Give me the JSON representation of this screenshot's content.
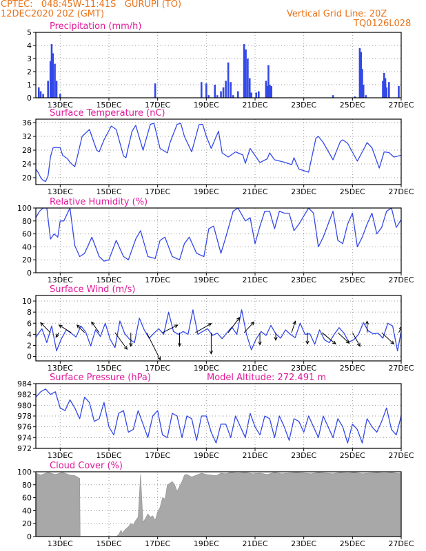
{
  "header": {
    "line1_left": "CPTEC:   048:45W-11:41S   GURUPI (TO)",
    "line2_left": "12DEC2020 20Z (GMT)",
    "line2_right": "Vertical Grid Line: 20Z",
    "line3_right": "TQ0126L028"
  },
  "colors": {
    "header": "#e8731a",
    "title": "#e0189a",
    "series": "#3348e8",
    "cloud": "#a8a8a8",
    "arrow": "#000000"
  },
  "x_axis": {
    "domain": [
      0,
      15
    ],
    "tick_positions": [
      1,
      3,
      5,
      7,
      9,
      11,
      13,
      15
    ],
    "tick_labels": [
      "13DEC",
      "15DEC",
      "17DEC",
      "19DEC",
      "21DEC",
      "23DEC",
      "25DEC",
      "27DEC"
    ],
    "grid_positions": [
      1,
      3,
      5,
      7,
      9,
      11,
      13
    ]
  },
  "chart_data": [
    {
      "id": "precipitation",
      "type": "bar",
      "title": "Precipitation (mm/h)",
      "ylim": [
        0,
        5
      ],
      "yticks": [
        0,
        1,
        2,
        3,
        4,
        5
      ],
      "x": [
        0.12,
        0.2,
        0.3,
        0.5,
        0.6,
        0.65,
        0.7,
        0.78,
        0.85,
        1.0,
        4.9,
        6.8,
        7.0,
        7.1,
        7.35,
        7.45,
        7.6,
        7.7,
        7.8,
        7.9,
        8.0,
        8.1,
        8.3,
        8.55,
        8.62,
        8.7,
        8.78,
        8.85,
        9.05,
        9.15,
        9.45,
        9.5,
        9.55,
        9.6,
        9.67,
        12.2,
        13.1,
        13.3,
        13.35,
        13.4,
        13.45,
        13.55,
        14.25,
        14.3,
        14.35,
        14.4,
        14.5,
        14.9
      ],
      "values": [
        0.8,
        0.5,
        0.3,
        1.3,
        2.8,
        4.1,
        3.4,
        2.6,
        1.3,
        0.3,
        1.1,
        1.2,
        1.1,
        0.2,
        1.0,
        0.2,
        0.5,
        0.8,
        1.3,
        2.7,
        1.2,
        0.2,
        0.5,
        4.1,
        3.7,
        3.0,
        1.5,
        0.4,
        0.4,
        0.5,
        1.3,
        0.9,
        2.5,
        1.0,
        0.9,
        0.2,
        0.1,
        3.8,
        3.5,
        2.2,
        1.0,
        0.2,
        1.3,
        1.9,
        1.5,
        0.8,
        1.2,
        0.9
      ],
      "series": [
        {
          "name": "Precipitation"
        }
      ]
    },
    {
      "id": "temperature",
      "type": "line",
      "title": "Surface Temperature (nC)",
      "ylim": [
        18,
        37
      ],
      "yticks": [
        20,
        24,
        28,
        32,
        36
      ],
      "x": [
        0,
        0.1,
        0.2,
        0.3,
        0.4,
        0.5,
        0.6,
        0.7,
        0.8,
        0.9,
        1.0,
        1.1,
        1.3,
        1.4,
        1.5,
        1.6,
        1.7,
        1.9,
        2.2,
        2.5,
        2.6,
        2.8,
        3.1,
        3.3,
        3.6,
        3.7,
        3.8,
        3.95,
        4.1,
        4.4,
        4.7,
        4.85,
        5.1,
        5.4,
        5.5,
        5.8,
        5.95,
        6.1,
        6.4,
        6.7,
        6.85,
        7.0,
        7.2,
        7.5,
        7.65,
        7.9,
        8.2,
        8.5,
        8.6,
        8.8,
        9.2,
        9.5,
        9.6,
        9.8,
        10.2,
        10.5,
        10.6,
        10.8,
        11.2,
        11.5,
        11.6,
        11.8,
        12.2,
        12.5,
        12.6,
        12.8,
        13.2,
        13.5,
        13.6,
        13.8,
        14.1,
        14.3,
        14.5,
        14.7,
        15.0
      ],
      "series": [
        {
          "name": "Temperature",
          "values": [
            22.5,
            21.5,
            20,
            19.2,
            18.9,
            20.5,
            26,
            28.6,
            28.8,
            28.7,
            28.7,
            26.5,
            25.5,
            24.5,
            23.8,
            23.2,
            26,
            32,
            34,
            28,
            27.5,
            31,
            35,
            34,
            26.3,
            25.8,
            29,
            33.5,
            35.2,
            28,
            35.5,
            35.8,
            28.5,
            27.2,
            30,
            35.5,
            35.8,
            32,
            27.5,
            35.4,
            35.5,
            32,
            28.5,
            33.5,
            27.2,
            26,
            27.5,
            26.6,
            24.2,
            28.5,
            24.4,
            25.5,
            27.2,
            25.2,
            24.5,
            23.8,
            25.8,
            22.5,
            21.6,
            31.5,
            32,
            30.2,
            25.2,
            30.5,
            31,
            30,
            24.8,
            28.8,
            30.2,
            28.7,
            22.8,
            27.5,
            27.3,
            26,
            26.5
          ]
        }
      ]
    },
    {
      "id": "humidity",
      "type": "line",
      "title": "Relative Humidity (%)",
      "ylim": [
        0,
        100
      ],
      "yticks": [
        0,
        20,
        40,
        60,
        80,
        100
      ],
      "x": [
        0,
        0.15,
        0.3,
        0.45,
        0.6,
        0.75,
        0.9,
        1.0,
        1.15,
        1.4,
        1.6,
        1.8,
        2.0,
        2.3,
        2.6,
        2.8,
        3.0,
        3.3,
        3.6,
        3.8,
        4.1,
        4.3,
        4.6,
        4.9,
        5.1,
        5.3,
        5.6,
        5.9,
        6.1,
        6.3,
        6.6,
        6.9,
        7.1,
        7.3,
        7.6,
        7.8,
        8.1,
        8.3,
        8.6,
        8.8,
        9.0,
        9.2,
        9.4,
        9.6,
        9.8,
        10.0,
        10.2,
        10.4,
        10.6,
        10.8,
        11.2,
        11.4,
        11.6,
        11.8,
        12.0,
        12.2,
        12.4,
        12.6,
        12.8,
        13.0,
        13.2,
        13.4,
        13.6,
        13.8,
        14.0,
        14.2,
        14.4,
        14.6,
        14.8,
        15.0
      ],
      "series": [
        {
          "name": "Humidity",
          "values": [
            85,
            95,
            100,
            100,
            52,
            60,
            55,
            80,
            80,
            100,
            42,
            25,
            30,
            55,
            25,
            18,
            20,
            50,
            25,
            20,
            52,
            65,
            25,
            22,
            50,
            55,
            25,
            20,
            45,
            55,
            30,
            25,
            68,
            72,
            30,
            55,
            95,
            100,
            80,
            85,
            45,
            72,
            95,
            95,
            68,
            95,
            92,
            92,
            65,
            75,
            100,
            92,
            40,
            55,
            75,
            95,
            50,
            45,
            75,
            92,
            40,
            55,
            75,
            92,
            60,
            70,
            95,
            100,
            70,
            82
          ]
        }
      ]
    },
    {
      "id": "wind",
      "type": "line",
      "title": "Surface Wind (m/s)",
      "ylim": [
        -0.8,
        11
      ],
      "yticks": [
        0,
        2,
        4,
        6,
        8,
        10
      ],
      "x": [
        0,
        0.25,
        0.45,
        0.65,
        0.85,
        1.05,
        1.25,
        1.45,
        1.65,
        1.85,
        2.05,
        2.25,
        2.45,
        2.65,
        2.85,
        3.05,
        3.25,
        3.45,
        3.65,
        3.85,
        4.05,
        4.25,
        4.45,
        4.65,
        4.85,
        5.05,
        5.25,
        5.45,
        5.65,
        5.85,
        6.05,
        6.25,
        6.45,
        6.65,
        6.85,
        7.05,
        7.25,
        7.45,
        7.65,
        7.85,
        8.05,
        8.25,
        8.45,
        8.65,
        8.85,
        9.05,
        9.25,
        9.45,
        9.65,
        9.85,
        10.05,
        10.25,
        10.45,
        10.65,
        10.85,
        11.05,
        11.25,
        11.45,
        11.65,
        11.85,
        12.05,
        12.25,
        12.45,
        12.65,
        12.85,
        13.05,
        13.25,
        13.45,
        13.65,
        13.85,
        14.05,
        14.25,
        14.45,
        14.65,
        14.85,
        15.0
      ],
      "series": [
        {
          "name": "Wind speed",
          "values": [
            3.5,
            5.0,
            2.5,
            5.5,
            1.0,
            3.2,
            4.8,
            4.2,
            3.5,
            5.5,
            4.4,
            1.9,
            4.8,
            3.6,
            6.0,
            3.1,
            1.6,
            6.4,
            4.1,
            3.1,
            2.5,
            6.9,
            4.8,
            3.3,
            4.2,
            5.0,
            4.0,
            8.0,
            4.5,
            4.0,
            4.5,
            4.0,
            8.4,
            4.0,
            4.5,
            5.0,
            3.8,
            4.2,
            3.2,
            4.3,
            5.3,
            4.0,
            8.4,
            4.0,
            1.2,
            3.2,
            4.5,
            3.8,
            5.6,
            4.1,
            3.3,
            4.8,
            4.0,
            3.4,
            6.0,
            4.0,
            4.1,
            2.2,
            4.8,
            3.0,
            2.5,
            4.0,
            5.2,
            4.2,
            2.6,
            3.0,
            4.0,
            6.1,
            4.6,
            4.1,
            4.2,
            3.3,
            6.0,
            5.5,
            1.0,
            4.5
          ]
        }
      ],
      "vectors": {
        "x": [
          0.6,
          0.95,
          1.45,
          2.0,
          2.6,
          3.25,
          3.9,
          4.55,
          5.2,
          5.9,
          6.55,
          7.2,
          7.9,
          8.55,
          9.2,
          9.85,
          10.5,
          11.15,
          11.75,
          12.4,
          13.0,
          13.6,
          14.2,
          14.9
        ],
        "u": [
          -1.3,
          -0.4,
          -1.6,
          -1.0,
          -1.0,
          1.6,
          0.0,
          1.8,
          2.0,
          0.0,
          2.1,
          0.0,
          1.5,
          1.3,
          0.0,
          0.0,
          0.5,
          0.0,
          1.8,
          1.5,
          1.0,
          0.0,
          1.6,
          0.4
        ],
        "v": [
          1.3,
          -0.6,
          1.0,
          1.0,
          1.4,
          -2.2,
          -1.8,
          -3.6,
          1.0,
          -1.8,
          1.2,
          -2.8,
          2.0,
          1.4,
          -1.6,
          -1.0,
          1.5,
          -1.5,
          -1.5,
          -1.4,
          -1.8,
          1.5,
          -1.5,
          0.8
        ]
      }
    },
    {
      "id": "pressure",
      "type": "line",
      "title": "Surface Pressure (hPa)",
      "annotation": "Model Altitude: 272.491 m",
      "ylim": [
        972,
        984
      ],
      "yticks": [
        972,
        974,
        976,
        978,
        980,
        982,
        984
      ],
      "x": [
        0,
        0.2,
        0.4,
        0.6,
        0.8,
        1.0,
        1.2,
        1.4,
        1.6,
        1.8,
        2.0,
        2.2,
        2.4,
        2.6,
        2.8,
        3.0,
        3.2,
        3.4,
        3.6,
        3.8,
        4.0,
        4.2,
        4.4,
        4.6,
        4.8,
        5.0,
        5.2,
        5.4,
        5.6,
        5.8,
        6.0,
        6.2,
        6.4,
        6.6,
        6.8,
        7.0,
        7.2,
        7.4,
        7.6,
        7.8,
        8.0,
        8.2,
        8.4,
        8.6,
        8.8,
        9.0,
        9.2,
        9.4,
        9.6,
        9.8,
        10.0,
        10.2,
        10.4,
        10.6,
        10.8,
        11.0,
        11.2,
        11.4,
        11.6,
        11.8,
        12.0,
        12.2,
        12.4,
        12.6,
        12.8,
        13.0,
        13.2,
        13.4,
        13.6,
        13.8,
        14.0,
        14.2,
        14.4,
        14.6,
        14.8,
        15.0
      ],
      "series": [
        {
          "name": "Pressure",
          "values": [
            981.5,
            982.5,
            983.0,
            982.0,
            982.5,
            979.5,
            979.0,
            981.0,
            979.5,
            977.5,
            981.5,
            980.5,
            977.0,
            977.5,
            980.5,
            976.0,
            974.5,
            978.5,
            979.0,
            975.0,
            975.5,
            979.0,
            976.5,
            974.0,
            978.0,
            979.0,
            974.5,
            974.0,
            978.5,
            978.0,
            974.0,
            978.0,
            977.5,
            973.5,
            978.0,
            978.0,
            975.0,
            973.0,
            976.5,
            976.5,
            974.0,
            978.0,
            976.0,
            974.0,
            978.5,
            976.0,
            974.5,
            978.0,
            977.5,
            974.0,
            978.0,
            976.0,
            973.5,
            977.5,
            977.0,
            975.0,
            978.0,
            976.0,
            974.0,
            978.0,
            976.0,
            974.0,
            977.5,
            976.0,
            973.0,
            976.5,
            975.5,
            973.0,
            977.5,
            976.0,
            975.0,
            977.0,
            979.5,
            975.5,
            974.5,
            978.0
          ]
        }
      ]
    },
    {
      "id": "cloud",
      "type": "area",
      "title": "Cloud Cover (%)",
      "ylim": [
        0,
        100
      ],
      "yticks": [
        0,
        20,
        40,
        60,
        80,
        100
      ],
      "x": [
        0,
        0.2,
        0.5,
        0.8,
        1.1,
        1.4,
        1.6,
        1.8,
        1.82,
        3.3,
        3.4,
        3.5,
        3.55,
        3.6,
        3.7,
        3.8,
        3.9,
        4.0,
        4.1,
        4.2,
        4.3,
        4.4,
        4.5,
        4.6,
        4.7,
        4.8,
        4.9,
        5.0,
        5.1,
        5.2,
        5.3,
        5.4,
        5.5,
        5.6,
        5.7,
        5.8,
        6.0,
        6.1,
        6.2,
        6.4,
        6.6,
        6.8,
        7.0,
        7.2,
        7.4,
        7.6,
        7.8,
        8.0,
        8.3,
        8.6,
        8.9,
        9.2,
        9.5,
        9.8,
        10.1,
        10.4,
        10.7,
        11.0,
        11.3,
        11.6,
        11.9,
        12.2,
        12.5,
        12.8,
        13.1,
        13.4,
        13.7,
        14.0,
        14.3,
        14.6,
        14.9,
        15.0
      ],
      "series": [
        {
          "name": "Cloud cover",
          "values": [
            98,
            95,
            99,
            96,
            99,
            95,
            94,
            90,
            0,
            0,
            3,
            10,
            5,
            8,
            12,
            15,
            20,
            18,
            25,
            30,
            96,
            22,
            28,
            35,
            30,
            32,
            25,
            38,
            45,
            60,
            58,
            80,
            82,
            85,
            80,
            70,
            85,
            95,
            96,
            92,
            95,
            98,
            96,
            95,
            94,
            98,
            97,
            99,
            98,
            99,
            97,
            98,
            96,
            99,
            97,
            98,
            99,
            98,
            97,
            99,
            98,
            97,
            99,
            98,
            99,
            97,
            98,
            99,
            98,
            99,
            97,
            98
          ]
        }
      ]
    }
  ]
}
